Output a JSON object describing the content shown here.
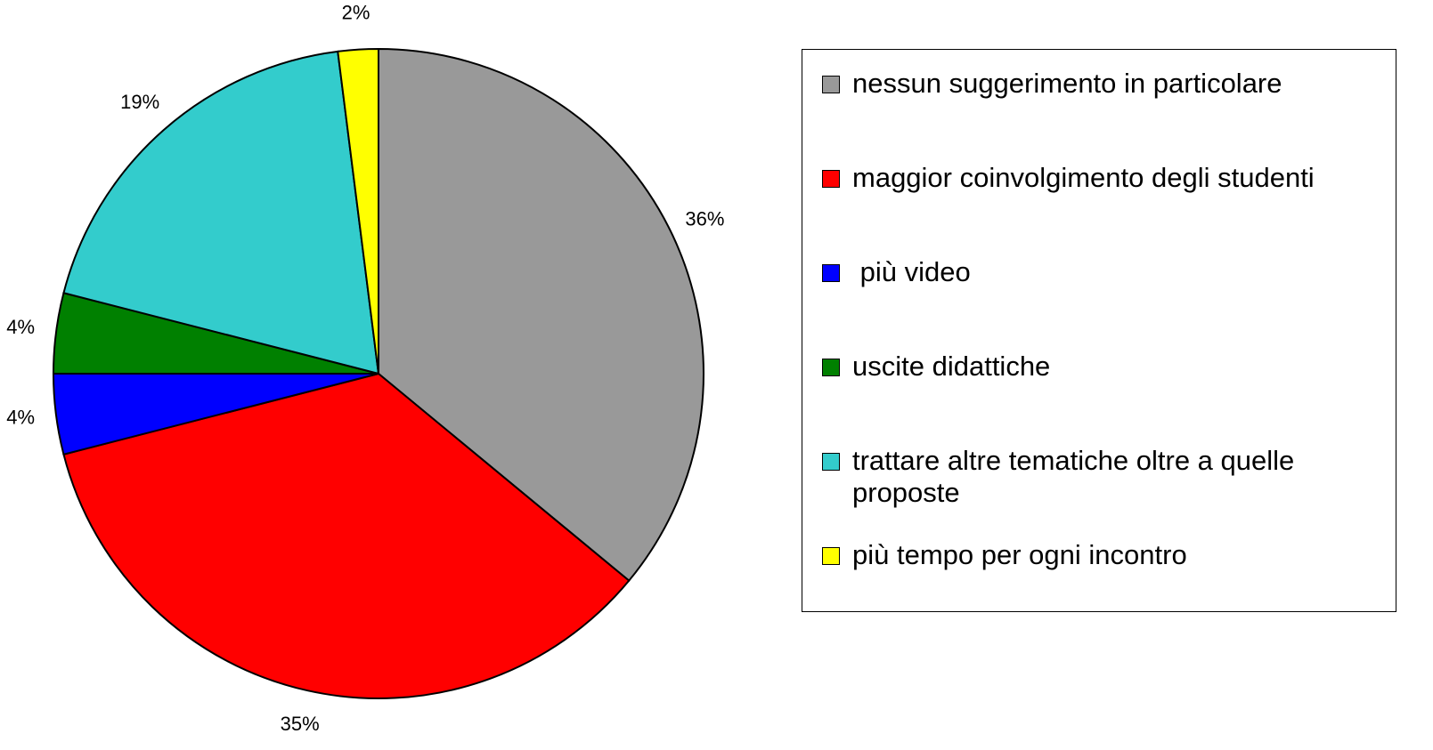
{
  "chart_data": {
    "type": "pie",
    "categories": [
      "nessun suggerimento in particolare",
      "maggior coinvolgimento degli studenti",
      " più video",
      "uscite didattiche",
      "trattare altre tematiche oltre a quelle proposte",
      "più tempo per ogni incontro"
    ],
    "values": [
      36,
      35,
      4,
      4,
      19,
      2
    ],
    "value_labels": [
      "36%",
      "35%",
      "4%",
      "4%",
      "19%",
      "2%"
    ],
    "colors": [
      "#999999",
      "#ff0000",
      "#0000ff",
      "#008000",
      "#33cccc",
      "#ffff00"
    ],
    "legend": "right"
  }
}
